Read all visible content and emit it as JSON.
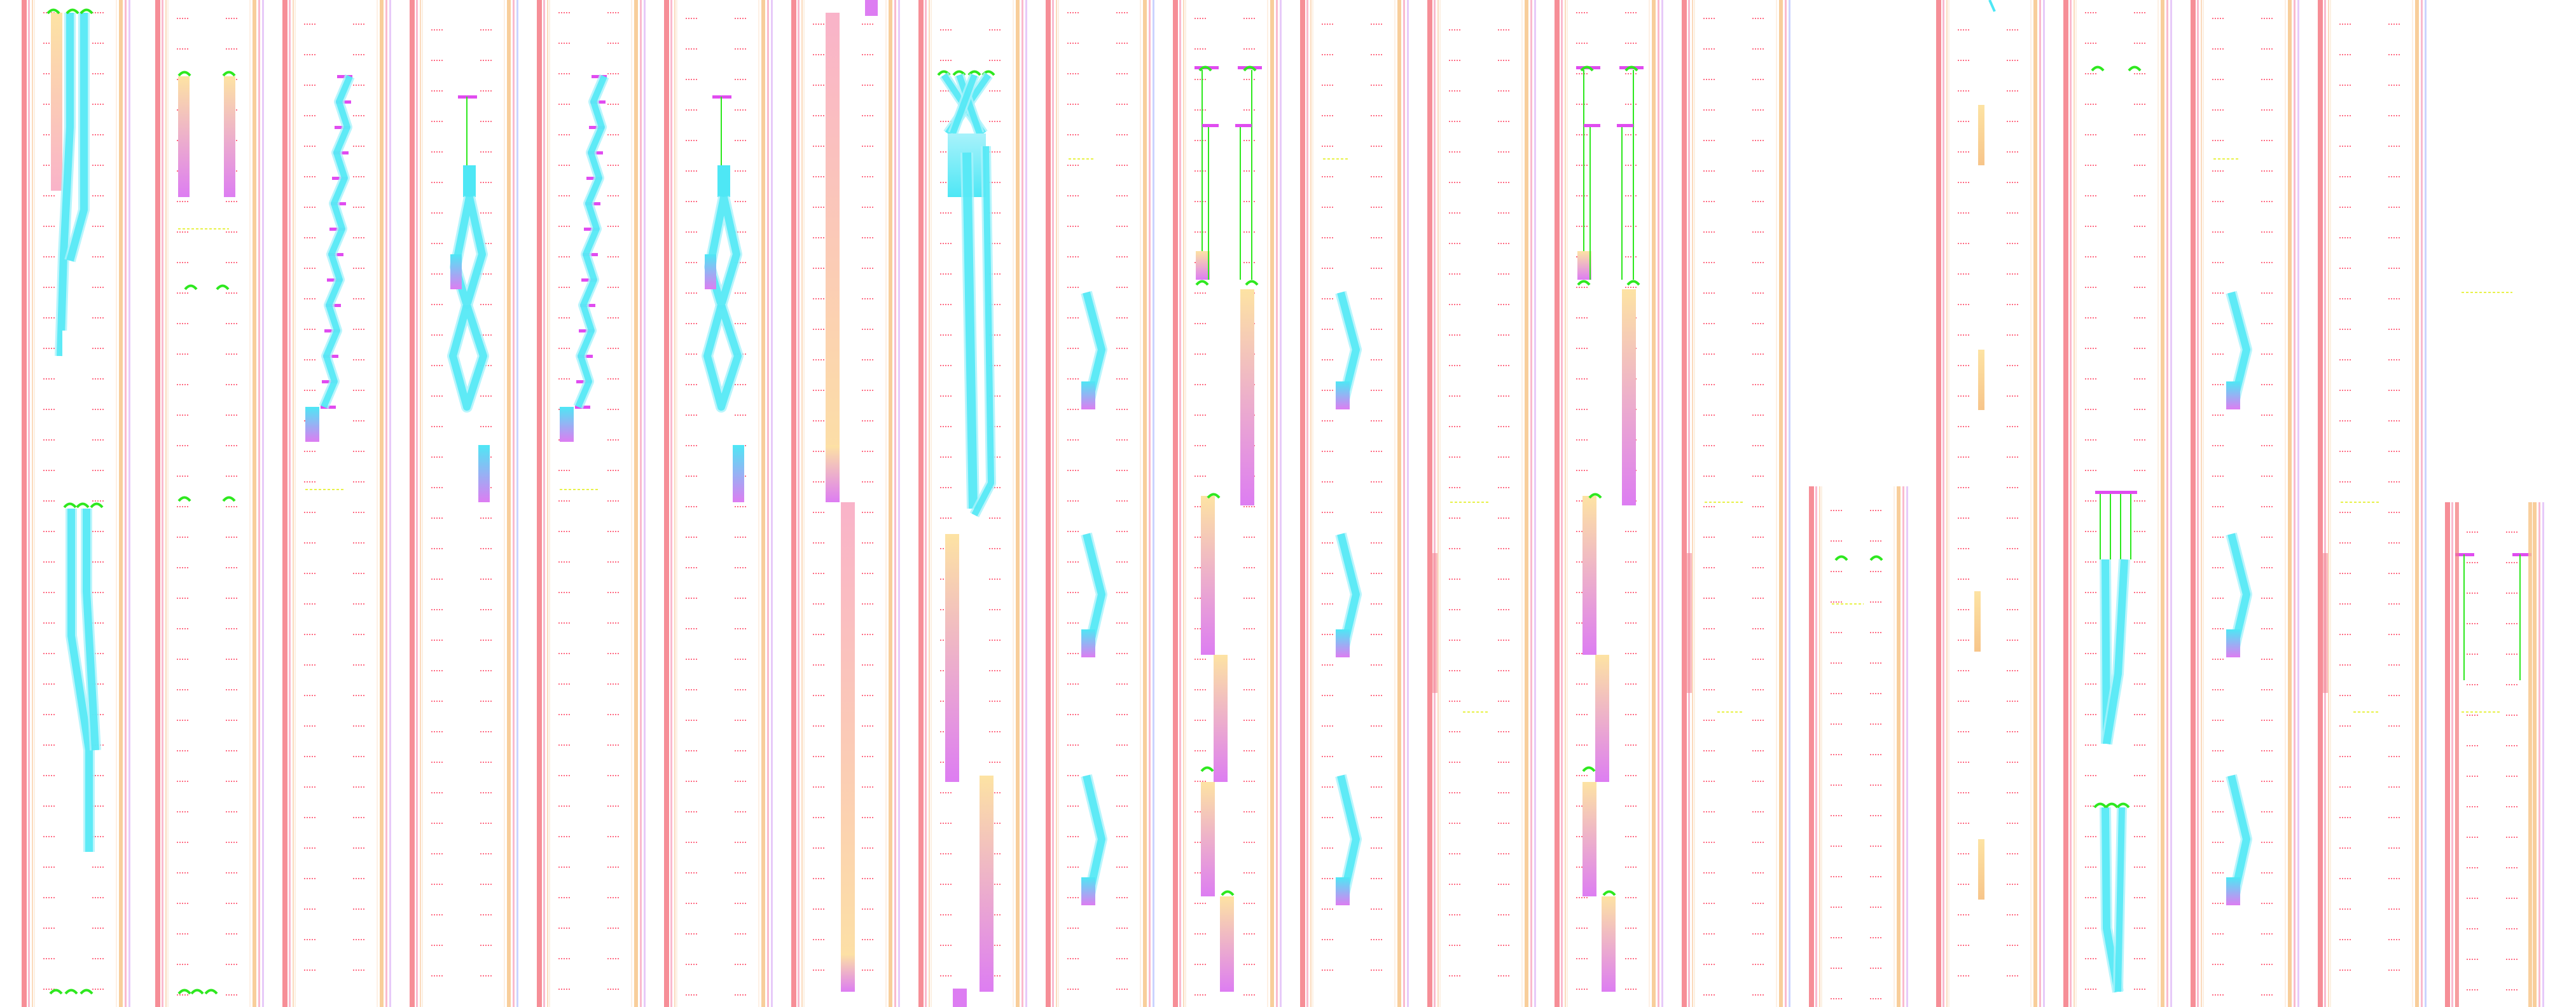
{
  "diagram": {
    "type": "vertical-track-layout",
    "text_labels": [],
    "colors": {
      "track_red": "#f47a85",
      "track_pink": "#f9b3c9",
      "track_orange": "#f7c58a",
      "track_peach": "#fbd6b5",
      "track_purple": "#d7a6f5",
      "track_blue": "#a9b6ff",
      "route_cyan": "#4ee7f5",
      "route_cyan_light": "#a8f2fb",
      "block_yellow": "#fde3a3",
      "block_magenta": "#dd7df2",
      "marker_green": "#2ee81f",
      "marker_yellow": "#e8f24a",
      "tick_red": "#ff3b5c",
      "stop_pink": "#e04cf0"
    },
    "panels": [
      {
        "id": "p1",
        "routes": "split-top"
      },
      {
        "id": "p2",
        "routes": "parallel-blocks"
      },
      {
        "id": "p3",
        "routes": "zigzag-ladder"
      },
      {
        "id": "p4",
        "routes": "diamond"
      },
      {
        "id": "p5",
        "routes": "zigzag-ladder"
      },
      {
        "id": "p6",
        "routes": "diamond"
      },
      {
        "id": "p7",
        "routes": "long-blocks"
      },
      {
        "id": "p8",
        "routes": "fan-cross"
      },
      {
        "id": "p9",
        "routes": "chevrons"
      },
      {
        "id": "p10",
        "routes": "gates"
      },
      {
        "id": "p11",
        "routes": "chevrons"
      },
      {
        "id": "p12",
        "routes": "sparse"
      },
      {
        "id": "p13",
        "routes": "gates"
      },
      {
        "id": "p14",
        "routes": "sparse"
      },
      {
        "id": "p15",
        "routes": "short-section"
      },
      {
        "id": "p16",
        "routes": "small-blocks"
      },
      {
        "id": "p17",
        "routes": "converging"
      },
      {
        "id": "p18",
        "routes": "chevrons"
      },
      {
        "id": "p19",
        "routes": "sparse"
      },
      {
        "id": "p20",
        "routes": "edge"
      }
    ]
  }
}
